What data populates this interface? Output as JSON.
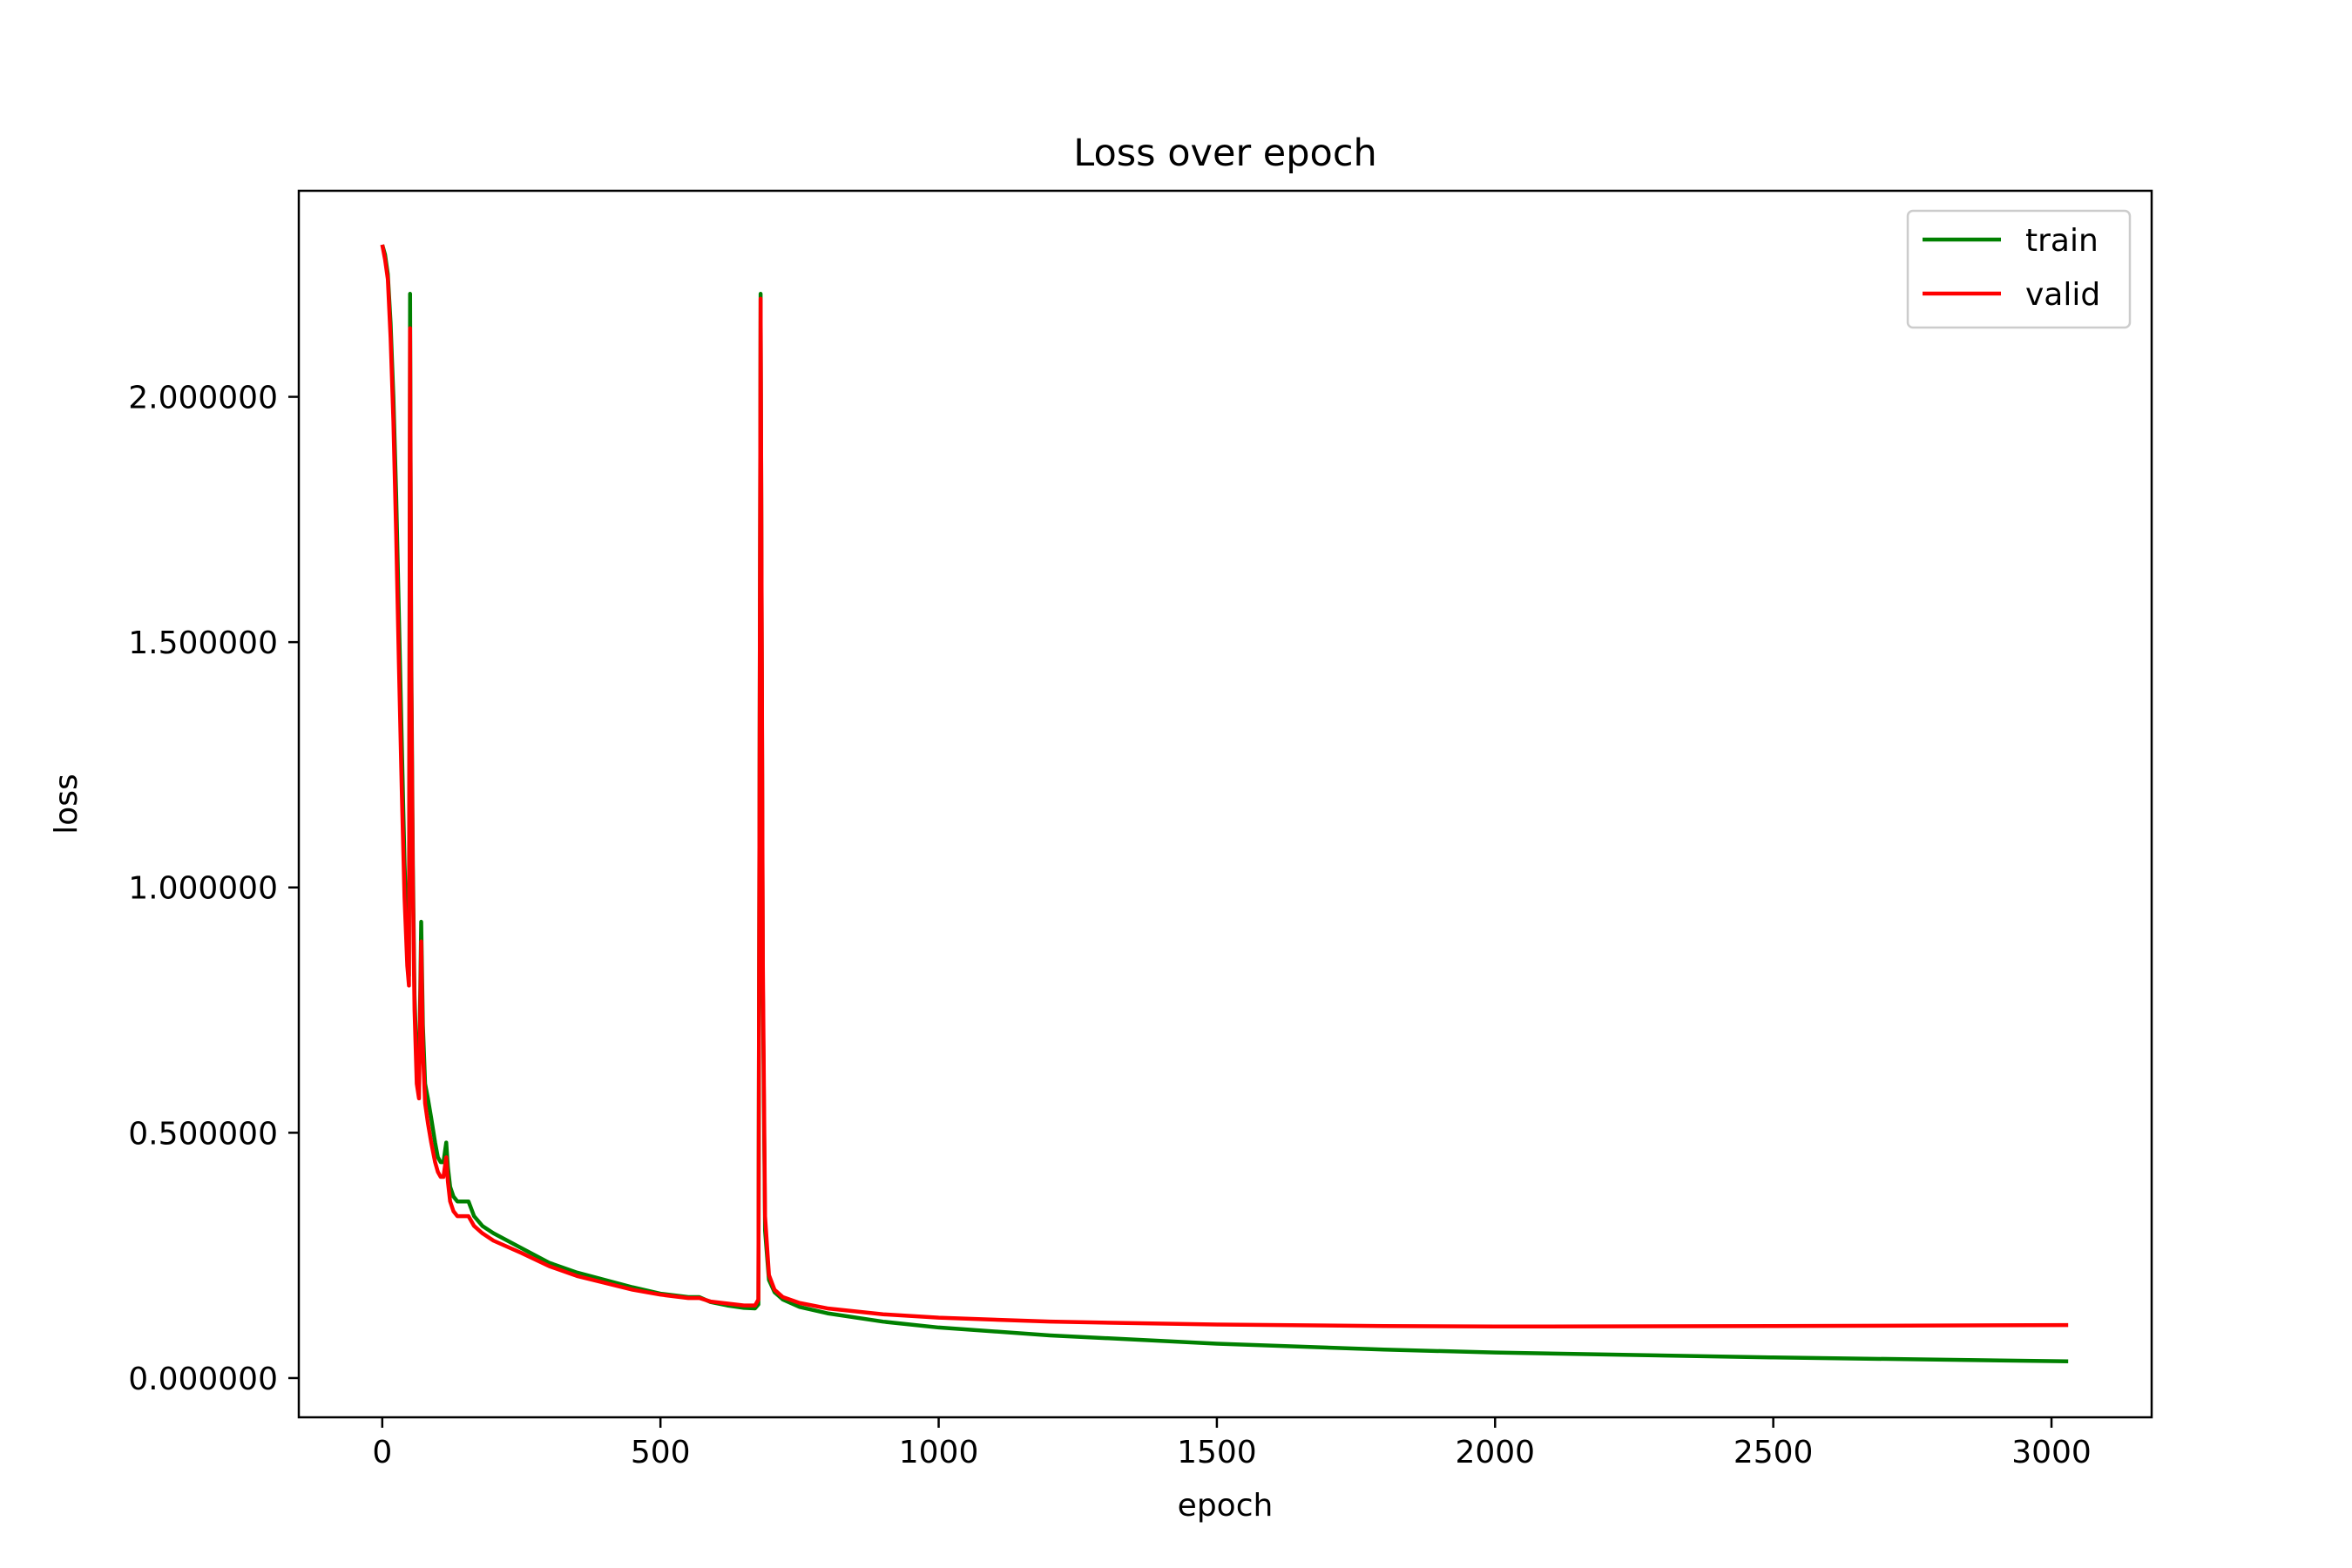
{
  "chart_data": {
    "type": "line",
    "title": "Loss over epoch",
    "xlabel": "epoch",
    "ylabel": "loss",
    "xlim": [
      -150,
      3180
    ],
    "ylim": [
      -0.08,
      2.42
    ],
    "xticks": [
      0,
      500,
      1000,
      1500,
      2000,
      2500,
      3000
    ],
    "xtick_labels": [
      "0",
      "500",
      "1000",
      "1500",
      "2000",
      "2500",
      "3000"
    ],
    "yticks": [
      0,
      0.5,
      1.0,
      1.5,
      2.0
    ],
    "ytick_labels": [
      "0.000000",
      "0.500000",
      "1.000000",
      "1.500000",
      "2.000000"
    ],
    "grid": false,
    "legend": "top-right",
    "series": [
      {
        "name": "train",
        "color": "#008000",
        "points": [
          [
            0,
            2.31
          ],
          [
            5,
            2.29
          ],
          [
            10,
            2.25
          ],
          [
            15,
            2.15
          ],
          [
            20,
            2.0
          ],
          [
            25,
            1.8
          ],
          [
            30,
            1.55
          ],
          [
            35,
            1.3
          ],
          [
            40,
            1.05
          ],
          [
            45,
            0.88
          ],
          [
            48,
            0.82
          ],
          [
            50,
            2.21
          ],
          [
            52,
            1.5
          ],
          [
            55,
            1.05
          ],
          [
            58,
            0.78
          ],
          [
            62,
            0.64
          ],
          [
            66,
            0.6
          ],
          [
            70,
            0.93
          ],
          [
            73,
            0.72
          ],
          [
            77,
            0.6
          ],
          [
            82,
            0.57
          ],
          [
            88,
            0.53
          ],
          [
            95,
            0.48
          ],
          [
            100,
            0.45
          ],
          [
            105,
            0.44
          ],
          [
            110,
            0.44
          ],
          [
            115,
            0.48
          ],
          [
            118,
            0.43
          ],
          [
            122,
            0.39
          ],
          [
            128,
            0.37
          ],
          [
            135,
            0.36
          ],
          [
            145,
            0.36
          ],
          [
            155,
            0.36
          ],
          [
            165,
            0.33
          ],
          [
            180,
            0.31
          ],
          [
            200,
            0.295
          ],
          [
            250,
            0.265
          ],
          [
            300,
            0.235
          ],
          [
            350,
            0.215
          ],
          [
            400,
            0.2
          ],
          [
            450,
            0.185
          ],
          [
            500,
            0.172
          ],
          [
            550,
            0.165
          ],
          [
            570,
            0.165
          ],
          [
            590,
            0.155
          ],
          [
            620,
            0.148
          ],
          [
            650,
            0.143
          ],
          [
            670,
            0.142
          ],
          [
            676,
            0.15
          ],
          [
            680,
            2.21
          ],
          [
            684,
            0.8
          ],
          [
            688,
            0.3
          ],
          [
            695,
            0.2
          ],
          [
            705,
            0.175
          ],
          [
            720,
            0.16
          ],
          [
            750,
            0.145
          ],
          [
            800,
            0.132
          ],
          [
            900,
            0.115
          ],
          [
            1000,
            0.103
          ],
          [
            1200,
            0.087
          ],
          [
            1500,
            0.07
          ],
          [
            1800,
            0.058
          ],
          [
            2000,
            0.052
          ],
          [
            2500,
            0.042
          ],
          [
            3030,
            0.034
          ]
        ]
      },
      {
        "name": "valid",
        "color": "#ff0000",
        "points": [
          [
            0,
            2.31
          ],
          [
            5,
            2.28
          ],
          [
            10,
            2.24
          ],
          [
            15,
            2.12
          ],
          [
            20,
            1.95
          ],
          [
            25,
            1.72
          ],
          [
            30,
            1.45
          ],
          [
            35,
            1.2
          ],
          [
            40,
            0.98
          ],
          [
            45,
            0.84
          ],
          [
            48,
            0.8
          ],
          [
            50,
            2.14
          ],
          [
            52,
            1.45
          ],
          [
            55,
            1.0
          ],
          [
            58,
            0.75
          ],
          [
            62,
            0.6
          ],
          [
            66,
            0.57
          ],
          [
            70,
            0.89
          ],
          [
            73,
            0.67
          ],
          [
            77,
            0.56
          ],
          [
            82,
            0.52
          ],
          [
            88,
            0.48
          ],
          [
            95,
            0.44
          ],
          [
            100,
            0.42
          ],
          [
            105,
            0.41
          ],
          [
            110,
            0.41
          ],
          [
            115,
            0.45
          ],
          [
            118,
            0.4
          ],
          [
            122,
            0.36
          ],
          [
            128,
            0.34
          ],
          [
            135,
            0.33
          ],
          [
            145,
            0.33
          ],
          [
            155,
            0.33
          ],
          [
            165,
            0.31
          ],
          [
            180,
            0.295
          ],
          [
            200,
            0.28
          ],
          [
            250,
            0.255
          ],
          [
            300,
            0.228
          ],
          [
            350,
            0.208
          ],
          [
            400,
            0.194
          ],
          [
            450,
            0.18
          ],
          [
            500,
            0.17
          ],
          [
            550,
            0.163
          ],
          [
            570,
            0.163
          ],
          [
            590,
            0.156
          ],
          [
            620,
            0.152
          ],
          [
            650,
            0.148
          ],
          [
            670,
            0.148
          ],
          [
            676,
            0.16
          ],
          [
            680,
            2.2
          ],
          [
            684,
            0.85
          ],
          [
            688,
            0.33
          ],
          [
            695,
            0.21
          ],
          [
            705,
            0.18
          ],
          [
            720,
            0.165
          ],
          [
            750,
            0.153
          ],
          [
            800,
            0.142
          ],
          [
            900,
            0.13
          ],
          [
            1000,
            0.123
          ],
          [
            1200,
            0.115
          ],
          [
            1500,
            0.109
          ],
          [
            1800,
            0.106
          ],
          [
            2000,
            0.105
          ],
          [
            2500,
            0.106
          ],
          [
            3030,
            0.108
          ]
        ]
      }
    ]
  }
}
